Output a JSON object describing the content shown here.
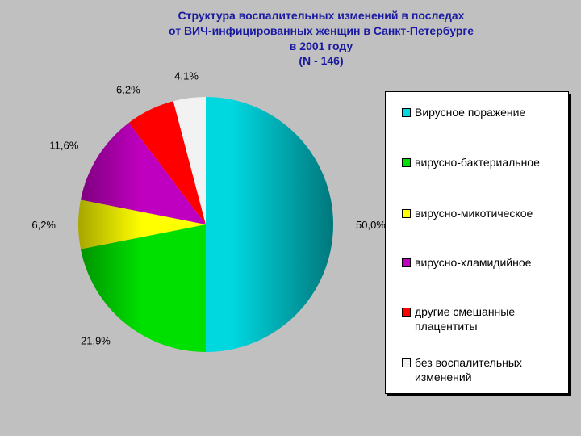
{
  "chart_data": {
    "type": "pie",
    "title": [
      "Структура воспалительных изменений в последах",
      "от ВИЧ-инфицированных женщин в Санкт-Петербурге",
      "в 2001 году",
      "(N - 146)"
    ],
    "categories": [
      "Вирусное поражение",
      "вирусно-бактериальное",
      "вирусно-микотическое",
      "вирусно-хламидийное",
      "другие смешанные плацентиты",
      "без воспалительных изменений"
    ],
    "values": [
      50.0,
      21.9,
      6.2,
      11.6,
      6.2,
      4.1
    ],
    "value_labels": [
      "50,0%",
      "21,9%",
      "6,2%",
      "11,6%",
      "6,2%",
      "4,1%"
    ],
    "colors": [
      "#00d8e0",
      "#00e000",
      "#ffff00",
      "#c000c0",
      "#ff0000",
      "#f2f2f2"
    ],
    "legend": "right"
  }
}
